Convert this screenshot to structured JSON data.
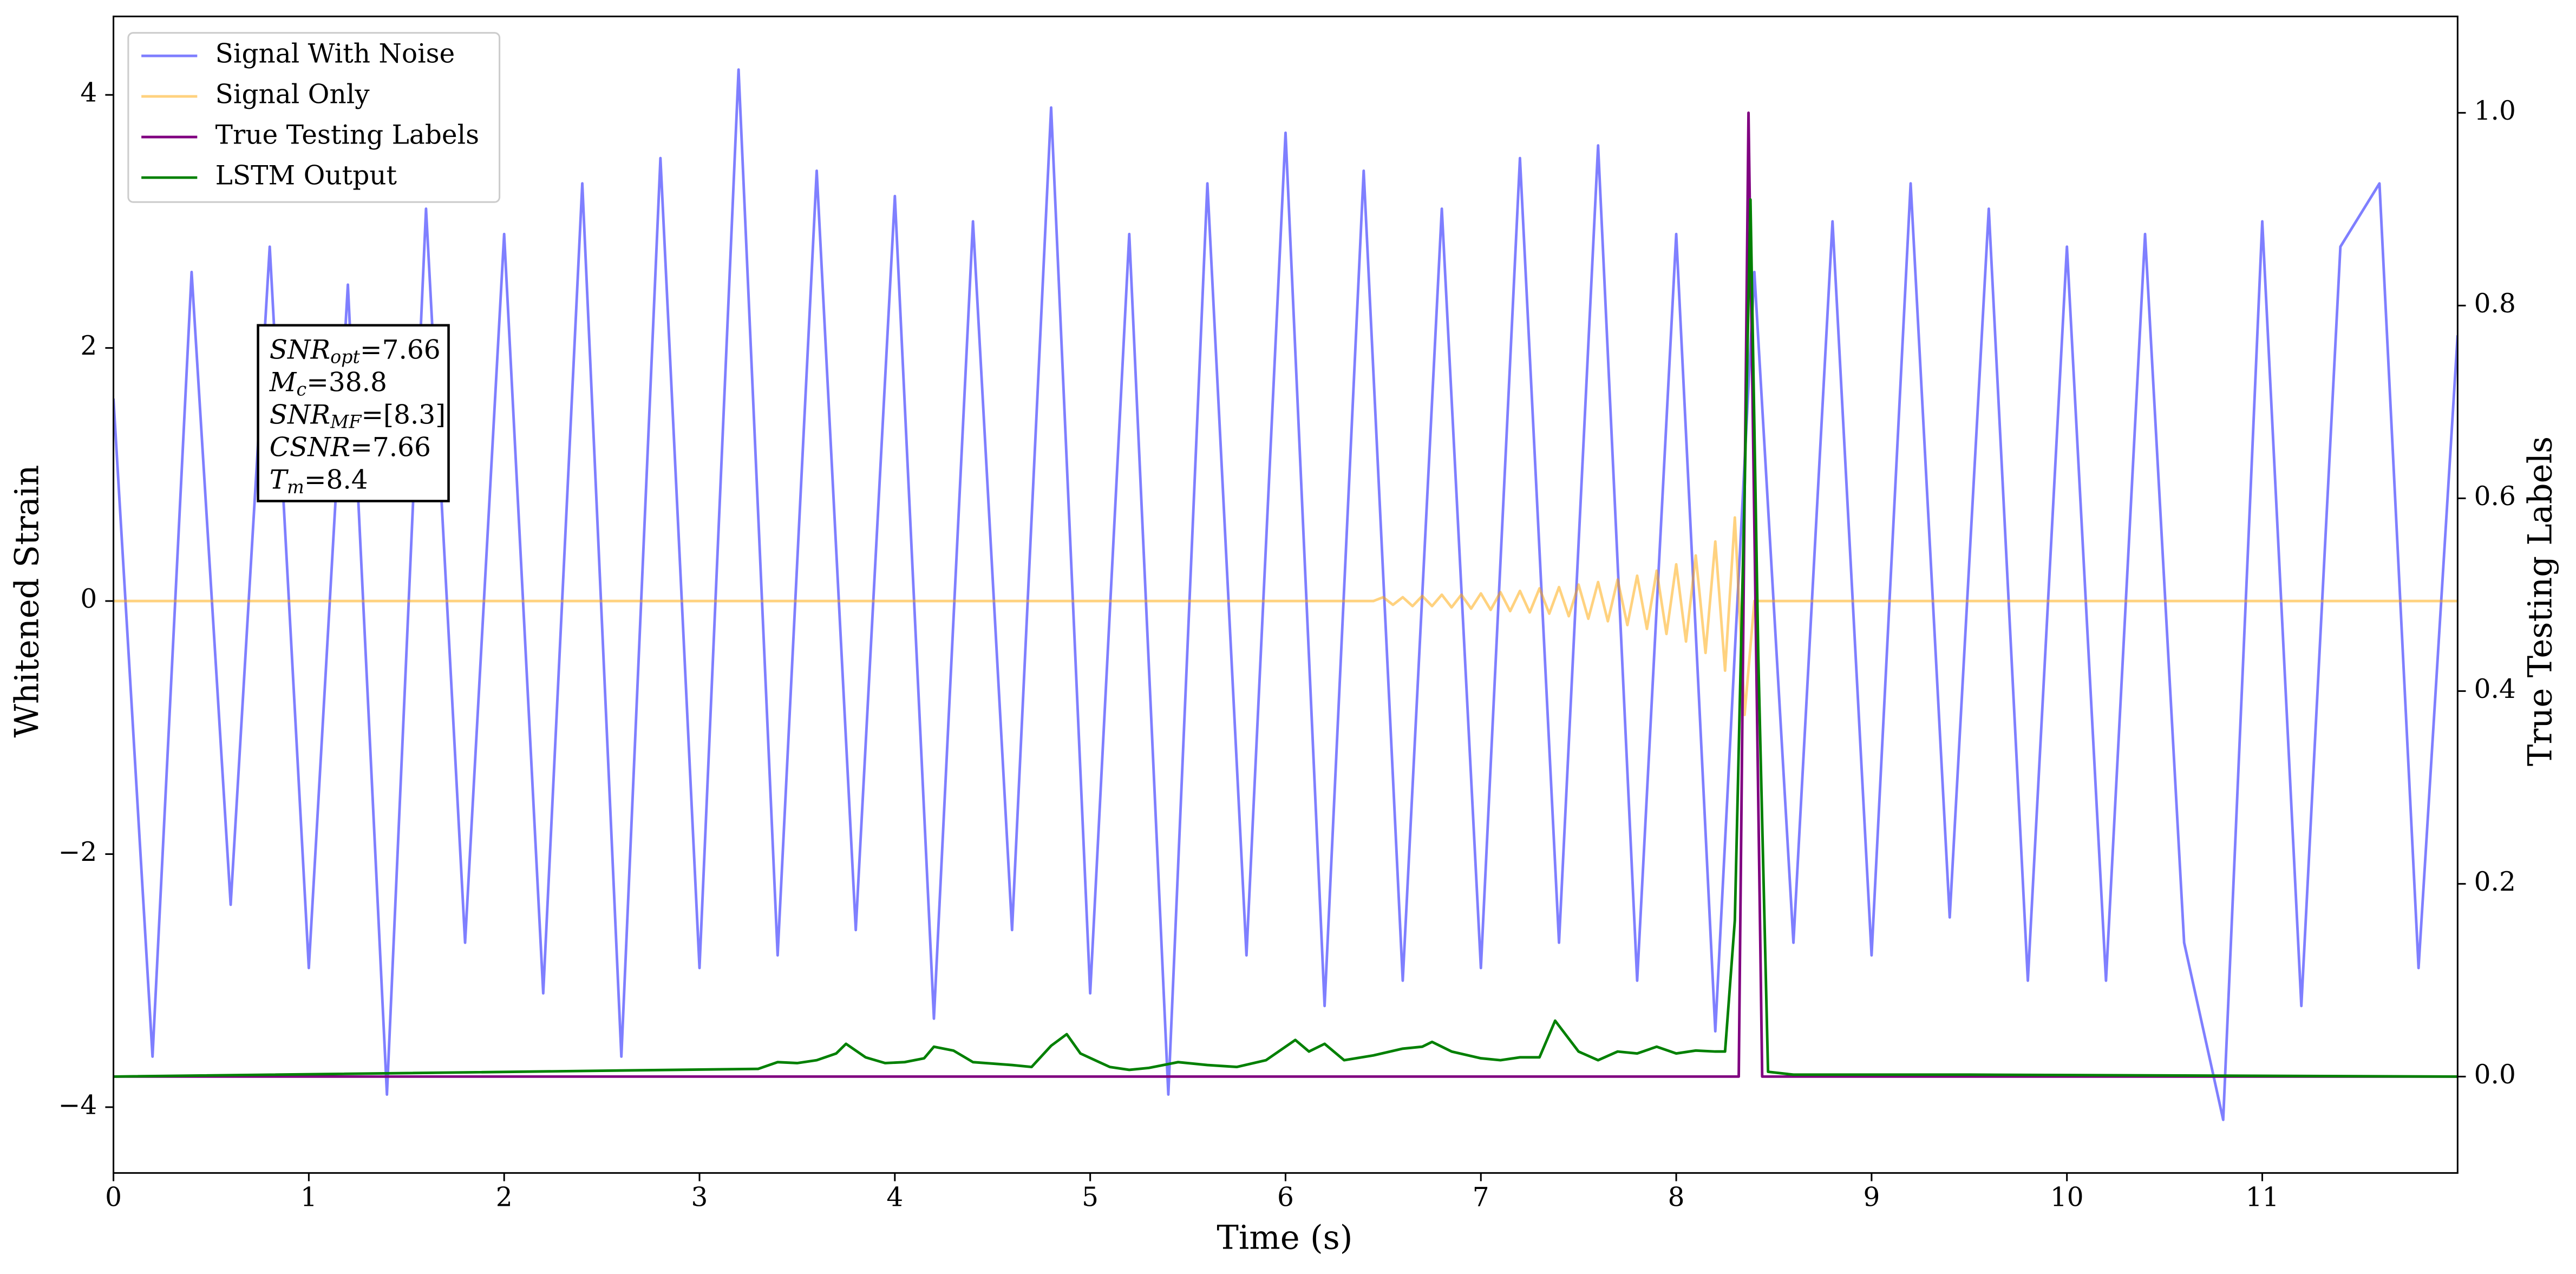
{
  "chart_data": {
    "type": "line",
    "xlabel": "Time (s)",
    "ylabel": "Whitened Strain",
    "y2label": "True Testing Labels",
    "xlim": [
      0,
      12
    ],
    "ylim": [
      -4.52,
      4.62
    ],
    "y2lim": [
      -0.1,
      1.1
    ],
    "xticks": [
      0,
      1,
      2,
      3,
      4,
      5,
      6,
      7,
      8,
      9,
      10,
      11
    ],
    "yticks": [
      {
        "value": -4,
        "label": "−4"
      },
      {
        "value": -2,
        "label": "−2"
      },
      0,
      2,
      4
    ],
    "y2ticks": [
      {
        "value": 0,
        "label": "0.0"
      },
      {
        "value": 0.2,
        "label": "0.2"
      },
      {
        "value": 0.4,
        "label": "0.4"
      },
      {
        "value": 0.6,
        "label": "0.6"
      },
      {
        "value": 0.8,
        "label": "0.8"
      },
      {
        "value": 1,
        "label": "1.0"
      }
    ],
    "legend": "upper left",
    "annotation": [
      {
        "main": "SNR",
        "sub": "opt",
        "rest": "=7.66"
      },
      {
        "main": "M",
        "sub": "c",
        "rest": "=38.8"
      },
      {
        "main": "SNR",
        "sub": "MF",
        "rest": "=[8.3]"
      },
      {
        "main": "CSNR",
        "rest": "=7.66"
      },
      {
        "main": "T",
        "sub": "m",
        "rest": "=8.4"
      }
    ],
    "series": [
      {
        "name": "Signal With Noise",
        "color": "#0000ff",
        "opacity": 0.5,
        "x": [
          0,
          0.2,
          0.4,
          0.6,
          0.8,
          1,
          1.2,
          1.4,
          1.6,
          1.8,
          2,
          2.2,
          2.4,
          2.6,
          2.8,
          3,
          3.2,
          3.4,
          3.6,
          3.8,
          4,
          4.2,
          4.4,
          4.6,
          4.8,
          5,
          5.2,
          5.4,
          5.6,
          5.8,
          6,
          6.2,
          6.4,
          6.6,
          6.8,
          7,
          7.2,
          7.4,
          7.6,
          7.8,
          8,
          8.2,
          8.4,
          8.6,
          8.8,
          9,
          9.2,
          9.4,
          9.6,
          9.8,
          10,
          10.2,
          10.4,
          10.6,
          10.8,
          11,
          11.2,
          11.4,
          11.6,
          11.8,
          12
        ],
        "values": [
          1.6,
          -3.6,
          2.6,
          -2.4,
          2.8,
          -2.9,
          2.5,
          -3.9,
          3.1,
          -2.7,
          2.9,
          -3.1,
          3.3,
          -3.6,
          3.5,
          -2.9,
          4.2,
          -2.8,
          3.4,
          -2.6,
          3.2,
          -3.3,
          3.0,
          -2.6,
          3.9,
          -3.1,
          2.9,
          -3.9,
          3.3,
          -2.8,
          3.7,
          -3.2,
          3.4,
          -3.0,
          3.1,
          -2.9,
          3.5,
          -2.7,
          3.6,
          -3.0,
          2.9,
          -3.4,
          2.6,
          -2.7,
          3.0,
          -2.8,
          3.3,
          -2.5,
          3.1,
          -3.0,
          2.8,
          -3.0,
          2.9,
          -2.7,
          -4.1,
          3.0,
          -3.2,
          2.8,
          3.3,
          -2.9,
          2.1
        ]
      },
      {
        "name": "Signal Only",
        "color": "#ffa500",
        "opacity": 0.5,
        "x": [
          0,
          6.45,
          6.5,
          6.55,
          6.6,
          6.65,
          6.7,
          6.75,
          6.8,
          6.85,
          6.9,
          6.95,
          7,
          7.05,
          7.1,
          7.15,
          7.2,
          7.25,
          7.3,
          7.35,
          7.4,
          7.45,
          7.5,
          7.55,
          7.6,
          7.65,
          7.7,
          7.75,
          7.8,
          7.85,
          7.9,
          7.95,
          8,
          8.05,
          8.1,
          8.15,
          8.2,
          8.25,
          8.3,
          8.35,
          8.4,
          8.45,
          12
        ],
        "values": [
          0,
          0,
          0.03,
          -0.03,
          0.03,
          -0.04,
          0.04,
          -0.04,
          0.05,
          -0.05,
          0.05,
          -0.06,
          0.06,
          -0.07,
          0.07,
          -0.08,
          0.08,
          -0.09,
          0.1,
          -0.1,
          0.11,
          -0.12,
          0.13,
          -0.14,
          0.15,
          -0.16,
          0.17,
          -0.19,
          0.2,
          -0.22,
          0.24,
          -0.26,
          0.29,
          -0.32,
          0.36,
          -0.41,
          0.47,
          -0.55,
          0.66,
          -0.9,
          0,
          0,
          0
        ]
      },
      {
        "name": "True Testing Labels",
        "color": "#800080",
        "opacity": 1,
        "axis": "y2",
        "x": [
          0,
          8.32,
          8.37,
          8.44,
          12
        ],
        "values": [
          0,
          0,
          1,
          0,
          0
        ]
      },
      {
        "name": "LSTM Output",
        "color": "#008000",
        "opacity": 1,
        "axis": "y2",
        "x": [
          0,
          3.3,
          3.4,
          3.5,
          3.6,
          3.7,
          3.75,
          3.85,
          3.95,
          4.05,
          4.15,
          4.2,
          4.3,
          4.4,
          4.6,
          4.7,
          4.8,
          4.88,
          4.95,
          5.1,
          5.2,
          5.3,
          5.45,
          5.6,
          5.75,
          5.9,
          6.05,
          6.12,
          6.2,
          6.3,
          6.45,
          6.6,
          6.7,
          6.75,
          6.85,
          7,
          7.1,
          7.2,
          7.3,
          7.38,
          7.5,
          7.6,
          7.7,
          7.8,
          7.9,
          8,
          8.1,
          8.2,
          8.25,
          8.3,
          8.35,
          8.38,
          8.42,
          8.47,
          8.6,
          9.5,
          12
        ],
        "values": [
          0,
          0.008,
          0.015,
          0.014,
          0.017,
          0.024,
          0.034,
          0.02,
          0.014,
          0.015,
          0.019,
          0.031,
          0.027,
          0.015,
          0.012,
          0.01,
          0.032,
          0.044,
          0.024,
          0.01,
          0.007,
          0.009,
          0.015,
          0.012,
          0.01,
          0.017,
          0.038,
          0.026,
          0.034,
          0.017,
          0.022,
          0.029,
          0.031,
          0.036,
          0.026,
          0.019,
          0.017,
          0.02,
          0.02,
          0.058,
          0.026,
          0.017,
          0.026,
          0.024,
          0.031,
          0.024,
          0.027,
          0.026,
          0.026,
          0.162,
          0.606,
          0.91,
          0.437,
          0.005,
          0.002,
          0.002,
          0
        ]
      }
    ]
  }
}
